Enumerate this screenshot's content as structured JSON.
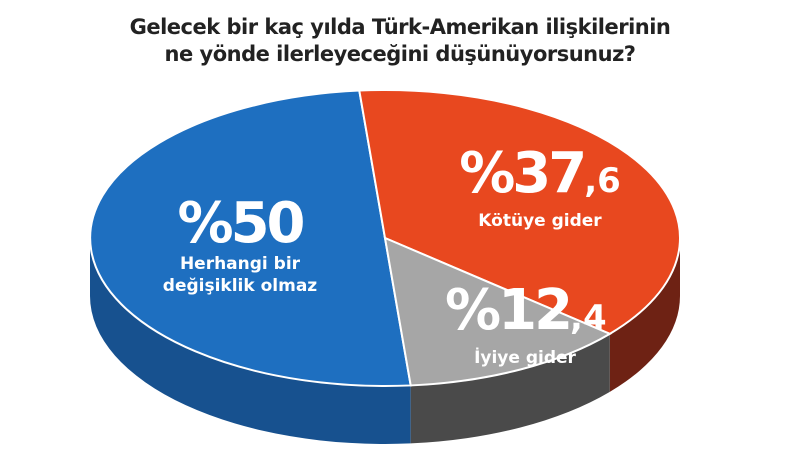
{
  "chart_data": {
    "type": "pie",
    "title": "Gelecek bir kaç yılda Türk-Amerikan ilişkilerinin ne yönde ilerleyeceğini düşünüyorsunuz?",
    "title_lines": [
      "Gelecek bir kaç yılda Türk-Amerikan ilişkilerinin",
      "ne yönde ilerleyeceğini düşünüyorsunuz?"
    ],
    "style": "3d",
    "slices": [
      {
        "label": "Herhangi bir değişiklik olmaz",
        "label_lines": [
          "Herhangi bir",
          "değişiklik olmaz"
        ],
        "value": 50,
        "value_text": "%50",
        "color": "#1e6fc0",
        "side_color": "#17518f"
      },
      {
        "label": "Kötüye gider",
        "value": 37.6,
        "value_text": "%37,6",
        "color": "#e8481f",
        "side_color": "#6e2214"
      },
      {
        "label": "İyiye gider",
        "value": 12.4,
        "value_text": "%12,4",
        "color": "#a6a6a6",
        "side_color": "#4a4a4a"
      }
    ]
  }
}
